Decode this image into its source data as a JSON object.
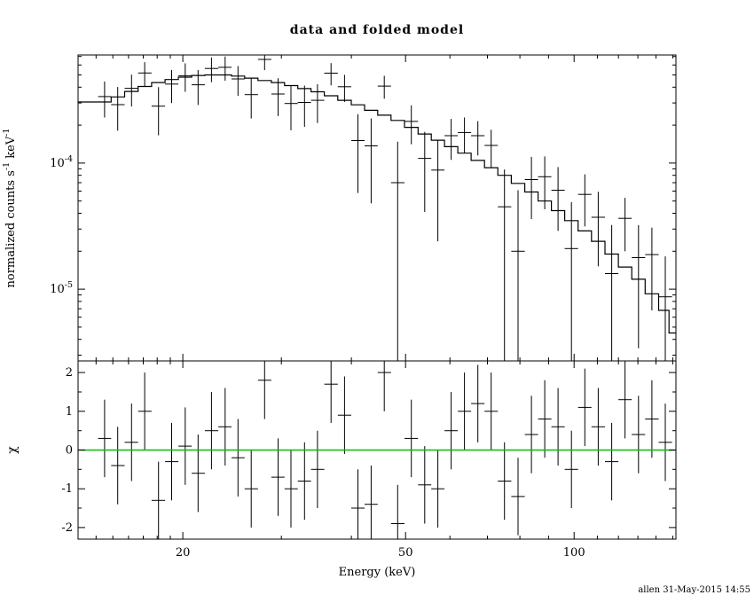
{
  "page": {
    "background": "#ffffff"
  },
  "footer": {
    "credit": "allen 31-May-2015 14:55"
  },
  "chart_data": {
    "type": "scatter",
    "title": "data and folded model",
    "xlabel": "Energy (keV)",
    "ylabel_top": "normalized counts s^-1 keV^-1",
    "ylabel_bottom": "χ",
    "xscale": "log",
    "yscale_top": "log",
    "yscale_bottom": "linear",
    "xlim": [
      13,
      152
    ],
    "ylim_top": [
      2.7e-06,
      0.00072
    ],
    "ylim_bottom": [
      -2.3,
      2.3
    ],
    "grid": false,
    "legend": "none",
    "x_ticks": [
      {
        "value": 20,
        "label": "20"
      },
      {
        "value": 50,
        "label": "50"
      },
      {
        "value": 100,
        "label": "100"
      }
    ],
    "y_ticks_top": [
      {
        "value": 0.0001,
        "label": "10^-4"
      },
      {
        "value": 1e-05,
        "label": "10^-5"
      }
    ],
    "y_ticks_bottom": [
      {
        "value": -2,
        "label": "-2"
      },
      {
        "value": -1,
        "label": "-1"
      },
      {
        "value": 0,
        "label": "0"
      },
      {
        "value": 1,
        "label": "1"
      },
      {
        "value": 2,
        "label": "2"
      }
    ],
    "data_color": "#000000",
    "model_color": "#000000",
    "zero_line_color": "#00C000",
    "footer": "allen 31-May-2015 14:55",
    "series": {
      "data": {
        "energy": [
          14.5,
          15.3,
          16.2,
          17.1,
          18.1,
          19.1,
          20.2,
          21.3,
          22.5,
          23.8,
          25.1,
          26.5,
          28.0,
          29.6,
          31.2,
          33.0,
          34.8,
          36.8,
          38.9,
          41.1,
          43.4,
          45.8,
          48.4,
          51.2,
          54.1,
          57.1,
          60.3,
          63.7,
          67.3,
          71.1,
          75.1,
          79.4,
          83.9,
          88.6,
          93.6,
          98.9,
          104.5,
          110.4,
          116.7,
          123.3,
          130.3,
          137.7,
          145.5
        ],
        "rate": [
          0.000337,
          0.000291,
          0.000392,
          0.000518,
          0.000283,
          0.000423,
          0.000493,
          0.000418,
          0.000563,
          0.000575,
          0.000465,
          0.000349,
          0.000664,
          0.000353,
          0.000297,
          0.000303,
          0.000315,
          0.000517,
          0.000403,
          0.000151,
          0.000137,
          0.000408,
          7e-05,
          0.000214,
          0.000109,
          8.8e-05,
          0.000165,
          0.000175,
          0.000165,
          0.000138,
          4.5e-05,
          2e-05,
          7.4e-05,
          7.8e-05,
          6.1e-05,
          2.1e-05,
          5.65e-05,
          3.72e-05,
          1.33e-05,
          3.65e-05,
          1.78e-05,
          1.88e-05,
          8.7e-06
        ],
        "rate_err": [
          0.000107,
          0.00011,
          0.000111,
          0.000113,
          0.000117,
          0.000124,
          0.000125,
          0.000129,
          0.000125,
          0.000125,
          0.000123,
          0.000123,
          0.000118,
          0.000117,
          0.000115,
          0.000109,
          0.000107,
          0.000103,
          9.8e-05,
          9.3e-05,
          8.9e-05,
          8.4e-05,
          7.8e-05,
          7.3e-05,
          6.8e-05,
          6.4e-05,
          5.9e-05,
          5.5e-05,
          5e-05,
          4.6e-05,
          4.4e-05,
          4.1e-05,
          3.8e-05,
          3.5e-05,
          3.2e-05,
          2.8e-05,
          2.5e-05,
          2.2e-05,
          1.9e-05,
          1.65e-05,
          1.44e-05,
          1.2e-05,
          9.5e-06
        ]
      },
      "model": {
        "energy": [
          14.5,
          15.3,
          16.2,
          17.1,
          18.1,
          19.1,
          20.2,
          21.3,
          22.5,
          23.8,
          25.1,
          26.5,
          28.0,
          29.6,
          31.2,
          33.0,
          34.8,
          36.8,
          38.9,
          41.1,
          43.4,
          45.8,
          48.4,
          51.2,
          54.1,
          57.1,
          60.3,
          63.7,
          67.3,
          71.1,
          75.1,
          79.4,
          83.9,
          88.6,
          93.6,
          98.9,
          104.5,
          110.4,
          116.7,
          123.3,
          130.3,
          137.7,
          145.5,
          150.0
        ],
        "value": [
          0.000305,
          0.000335,
          0.00037,
          0.000405,
          0.000435,
          0.00046,
          0.00048,
          0.000495,
          0.0005,
          0.0005,
          0.00049,
          0.000472,
          0.000452,
          0.000435,
          0.000412,
          0.00039,
          0.000368,
          0.000342,
          0.000315,
          0.00029,
          0.000262,
          0.00024,
          0.000218,
          0.000192,
          0.00017,
          0.000152,
          0.000135,
          0.00012,
          0.000105,
          9.2e-05,
          8e-05,
          6.9e-05,
          5.9e-05,
          5e-05,
          4.2e-05,
          3.5e-05,
          2.9e-05,
          2.4e-05,
          1.9e-05,
          1.5e-05,
          1.2e-05,
          9.2e-06,
          6.8e-06,
          4.5e-06
        ]
      },
      "residuals": {
        "chi": [
          0.3,
          -0.4,
          0.2,
          1.0,
          -1.3,
          -0.3,
          0.1,
          -0.6,
          0.5,
          0.6,
          -0.2,
          -1.0,
          1.8,
          -0.7,
          -1.0,
          -0.8,
          -0.5,
          1.7,
          0.9,
          -1.5,
          -1.4,
          2.0,
          -1.9,
          0.3,
          -0.9,
          -1.0,
          0.5,
          1.0,
          1.2,
          1.0,
          -0.8,
          -1.2,
          0.4,
          0.8,
          0.6,
          -0.5,
          1.1,
          0.6,
          -0.3,
          1.3,
          0.4,
          0.8,
          0.2
        ],
        "chi_err": 1.0
      }
    }
  }
}
